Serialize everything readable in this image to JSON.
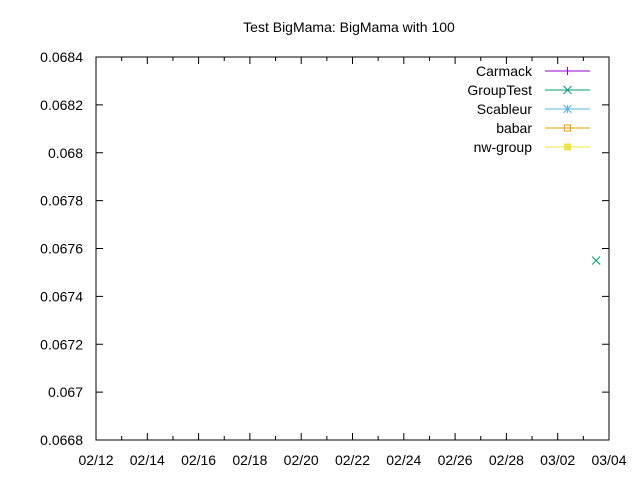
{
  "chart_data": {
    "type": "line",
    "title": "Test BigMama: BigMama with 100",
    "xlabel": "",
    "ylabel": "",
    "x_axis": {
      "type": "date",
      "range": [
        "2023-02-12",
        "2023-03-04"
      ],
      "tick_values": [
        "2023-02-12",
        "2023-02-14",
        "2023-02-16",
        "2023-02-18",
        "2023-02-20",
        "2023-02-22",
        "2023-02-24",
        "2023-02-26",
        "2023-02-28",
        "2023-03-02",
        "2023-03-04"
      ],
      "tick_labels": [
        "02/12",
        "02/14",
        "02/16",
        "02/18",
        "02/20",
        "02/22",
        "02/24",
        "02/26",
        "02/28",
        "03/02",
        "03/04"
      ],
      "minor_ticks_per_interval": 2
    },
    "y_axis": {
      "range": [
        0.0668,
        0.0684
      ],
      "ticks": [
        0.0668,
        0.067,
        0.0672,
        0.0674,
        0.0676,
        0.0678,
        0.068,
        0.0682,
        0.0684
      ],
      "tick_labels": [
        "0.0668",
        "0.067",
        "0.0672",
        "0.0674",
        "0.0676",
        "0.0678",
        "0.068",
        "0.0682",
        "0.0684"
      ]
    },
    "grid": false,
    "legend_position": "top-right",
    "series": [
      {
        "name": "Carmack",
        "color": "#9400d3",
        "marker": "plus",
        "points": []
      },
      {
        "name": "GroupTest",
        "color": "#009e73",
        "marker": "cross",
        "points": [
          {
            "x": "2023-03-03 12:00",
            "y": 0.06755
          }
        ]
      },
      {
        "name": "Scableur",
        "color": "#56b4e9",
        "marker": "star",
        "points": []
      },
      {
        "name": "babar",
        "color": "#e69f00",
        "marker": "square-open",
        "points": []
      },
      {
        "name": "nw-group",
        "color": "#f0e442",
        "marker": "square-filled",
        "points": []
      }
    ]
  }
}
